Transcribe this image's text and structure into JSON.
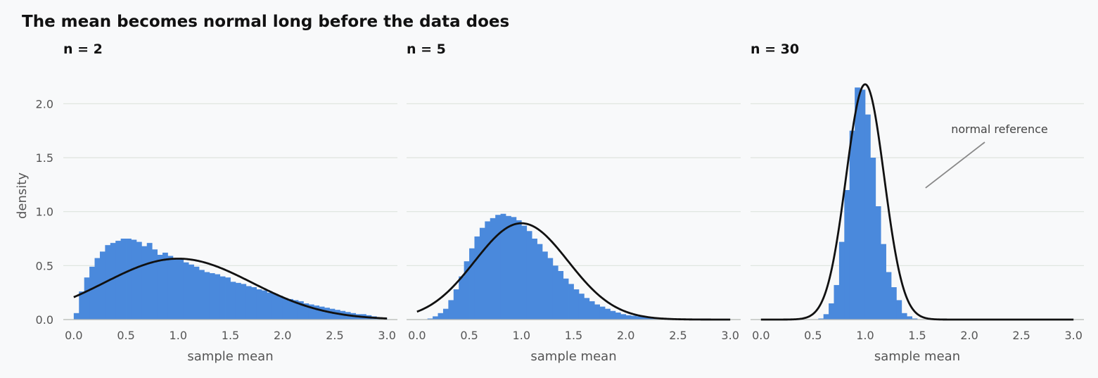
{
  "title": "The mean becomes normal long before the data does",
  "colors": {
    "bar": "#4a89dc",
    "curve": "#111111",
    "grid": "#dde3dd",
    "background": "#f8f9fa",
    "annotation": "#888888"
  },
  "chart_data": [
    {
      "type": "bar",
      "title": "n = 2",
      "xlabel": "sample mean",
      "ylabel": "density",
      "xlim": [
        -0.1,
        3.1
      ],
      "ylim": [
        0,
        2.4
      ],
      "xticks": [
        "0.0",
        "0.5",
        "1.0",
        "1.5",
        "2.0",
        "2.5",
        "3.0"
      ],
      "yticks": [
        "0.0",
        "0.5",
        "1.0",
        "1.5",
        "2.0"
      ],
      "grid": true,
      "histogram": {
        "bin_start": 0.0,
        "bin_width": 0.05,
        "values": [
          0.06,
          0.26,
          0.39,
          0.49,
          0.57,
          0.63,
          0.69,
          0.71,
          0.73,
          0.75,
          0.75,
          0.74,
          0.72,
          0.68,
          0.71,
          0.65,
          0.6,
          0.62,
          0.59,
          0.57,
          0.56,
          0.53,
          0.51,
          0.49,
          0.46,
          0.44,
          0.43,
          0.42,
          0.4,
          0.39,
          0.35,
          0.34,
          0.33,
          0.31,
          0.3,
          0.28,
          0.27,
          0.25,
          0.24,
          0.22,
          0.2,
          0.19,
          0.18,
          0.17,
          0.15,
          0.14,
          0.13,
          0.12,
          0.11,
          0.1,
          0.09,
          0.08,
          0.07,
          0.06,
          0.05,
          0.05,
          0.04,
          0.03,
          0.02,
          0.01
        ]
      },
      "normal_reference": {
        "mean": 1.0,
        "sd": 0.707
      }
    },
    {
      "type": "bar",
      "title": "n = 5",
      "xlabel": "sample mean",
      "xlim": [
        -0.1,
        3.1
      ],
      "ylim": [
        0,
        2.4
      ],
      "xticks": [
        "0.0",
        "0.5",
        "1.0",
        "1.5",
        "2.0",
        "2.5",
        "3.0"
      ],
      "grid": true,
      "histogram": {
        "bin_start": 0.0,
        "bin_width": 0.05,
        "values": [
          0,
          0,
          0.01,
          0.03,
          0.06,
          0.1,
          0.18,
          0.28,
          0.4,
          0.54,
          0.66,
          0.77,
          0.85,
          0.91,
          0.94,
          0.97,
          0.98,
          0.96,
          0.95,
          0.92,
          0.87,
          0.82,
          0.75,
          0.7,
          0.63,
          0.57,
          0.5,
          0.45,
          0.38,
          0.33,
          0.28,
          0.24,
          0.2,
          0.17,
          0.14,
          0.12,
          0.1,
          0.08,
          0.065,
          0.05,
          0.04,
          0.035,
          0.03,
          0.025,
          0.02,
          0.015,
          0.012,
          0.01,
          0.006,
          0.004,
          0.003,
          0.002,
          0.001,
          0.001,
          0,
          0,
          0,
          0,
          0,
          0
        ]
      },
      "normal_reference": {
        "mean": 1.0,
        "sd": 0.447
      }
    },
    {
      "type": "bar",
      "title": "n = 30",
      "xlabel": "sample mean",
      "xlim": [
        -0.1,
        3.1
      ],
      "ylim": [
        0,
        2.4
      ],
      "xticks": [
        "0.0",
        "0.5",
        "1.0",
        "1.5",
        "2.0",
        "2.5",
        "3.0"
      ],
      "grid": true,
      "histogram": {
        "bin_start": 0.0,
        "bin_width": 0.05,
        "values": [
          0,
          0,
          0,
          0,
          0,
          0,
          0,
          0,
          0,
          0,
          0,
          0.01,
          0.05,
          0.15,
          0.32,
          0.72,
          1.2,
          1.75,
          2.15,
          2.13,
          1.9,
          1.5,
          1.05,
          0.7,
          0.44,
          0.3,
          0.18,
          0.06,
          0.03,
          0.01,
          0,
          0,
          0,
          0,
          0,
          0,
          0,
          0,
          0,
          0,
          0,
          0,
          0,
          0,
          0,
          0,
          0,
          0,
          0,
          0,
          0,
          0,
          0,
          0,
          0,
          0,
          0,
          0,
          0,
          0
        ]
      },
      "normal_reference": {
        "mean": 1.0,
        "sd": 0.183
      },
      "annotation": {
        "text": "normal reference",
        "arrow_x": 1.58,
        "arrow_y": 1.22
      }
    }
  ]
}
